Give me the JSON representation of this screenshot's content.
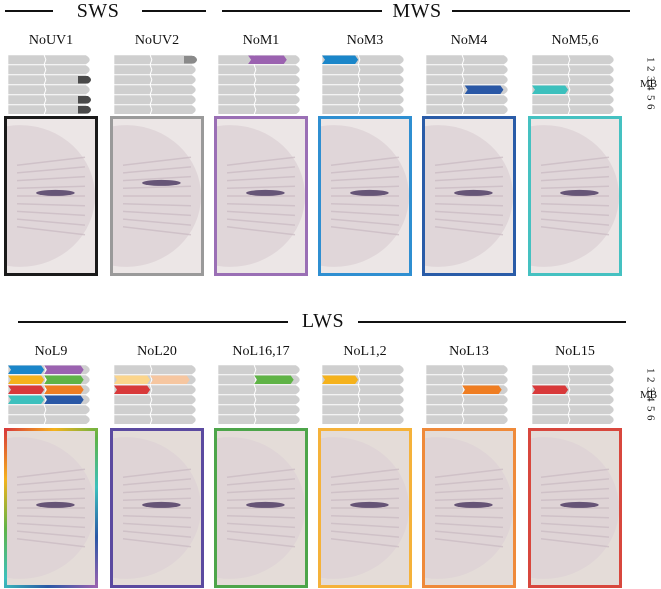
{
  "groups": [
    {
      "label": "SWS"
    },
    {
      "label": "MWS"
    },
    {
      "label": "LWS"
    }
  ],
  "mb_label": "MB",
  "row_numbers": [
    "1",
    "2",
    "3",
    "4",
    "5",
    "6"
  ],
  "row1": [
    {
      "label": "NoUV1",
      "frame": "#1a1a1a",
      "marks": [
        {
          "type": "tip",
          "row": 3,
          "color": "#4a4a4a"
        },
        {
          "type": "tip",
          "row": 5,
          "color": "#4a4a4a"
        },
        {
          "type": "tip",
          "row": 6,
          "color": "#4a4a4a"
        }
      ]
    },
    {
      "label": "NoUV2",
      "frame": "#9a9a9a",
      "marks": [
        {
          "type": "tip",
          "row": 1,
          "color": "#8a8a8a"
        }
      ]
    },
    {
      "label": "NoM1",
      "frame": "#9a6fb5",
      "marks": [
        {
          "type": "bar",
          "row": 1,
          "start": 0.35,
          "end": 0.8,
          "color": "#9b62b0"
        }
      ]
    },
    {
      "label": "NoM3",
      "frame": "#2f8fd1",
      "marks": [
        {
          "type": "bar",
          "row": 1,
          "start": 0,
          "end": 0.42,
          "color": "#1b86c9"
        }
      ]
    },
    {
      "label": "NoM4",
      "frame": "#2a5ca8",
      "marks": [
        {
          "type": "bar",
          "row": 4,
          "start": 0.45,
          "end": 0.9,
          "color": "#2a58a6"
        }
      ]
    },
    {
      "label": "NoM5,6",
      "frame": "#45c1c1",
      "marks": [
        {
          "type": "bar",
          "row": 4,
          "start": 0,
          "end": 0.42,
          "color": "#3cc0bd"
        }
      ]
    }
  ],
  "row2": [
    {
      "label": "NoL9",
      "frame": "rainbow",
      "marks": [
        {
          "type": "bar",
          "row": 1,
          "start": 0,
          "end": 0.42,
          "color": "#1b86c9"
        },
        {
          "type": "bar",
          "row": 1,
          "start": 0.42,
          "end": 0.88,
          "color": "#9b62b0"
        },
        {
          "type": "bar",
          "row": 2,
          "start": 0,
          "end": 0.42,
          "color": "#f5b21c"
        },
        {
          "type": "bar",
          "row": 2,
          "start": 0.42,
          "end": 0.88,
          "color": "#5fb346"
        },
        {
          "type": "bar",
          "row": 3,
          "start": 0,
          "end": 0.42,
          "color": "#d8393a"
        },
        {
          "type": "bar",
          "row": 3,
          "start": 0.42,
          "end": 0.88,
          "color": "#ef7d22"
        },
        {
          "type": "bar",
          "row": 4,
          "start": 0,
          "end": 0.42,
          "color": "#3cc0bd"
        },
        {
          "type": "bar",
          "row": 4,
          "start": 0.42,
          "end": 0.88,
          "color": "#2a58a6"
        }
      ]
    },
    {
      "label": "NoL20",
      "frame": "#5b4aa0",
      "marks": [
        {
          "type": "bar",
          "row": 2,
          "start": 0,
          "end": 0.42,
          "color": "#fbd58c"
        },
        {
          "type": "bar",
          "row": 2,
          "start": 0.42,
          "end": 0.88,
          "color": "#f6c6a0"
        },
        {
          "type": "bar",
          "row": 3,
          "start": 0,
          "end": 0.42,
          "color": "#d8393a"
        }
      ]
    },
    {
      "label": "NoL16,17",
      "frame": "#4da54a",
      "marks": [
        {
          "type": "bar",
          "row": 2,
          "start": 0.42,
          "end": 0.88,
          "color": "#5fb346"
        }
      ]
    },
    {
      "label": "NoL1,2",
      "frame": "#f5b23a",
      "marks": [
        {
          "type": "bar",
          "row": 2,
          "start": 0,
          "end": 0.42,
          "color": "#f5b21c"
        }
      ]
    },
    {
      "label": "NoL13",
      "frame": "#ef8a3a",
      "marks": [
        {
          "type": "bar",
          "row": 3,
          "start": 0.42,
          "end": 0.88,
          "color": "#ef7d22"
        }
      ]
    },
    {
      "label": "NoL15",
      "frame": "#d8473d",
      "marks": [
        {
          "type": "bar",
          "row": 3,
          "start": 0,
          "end": 0.42,
          "color": "#d8393a"
        }
      ]
    }
  ]
}
